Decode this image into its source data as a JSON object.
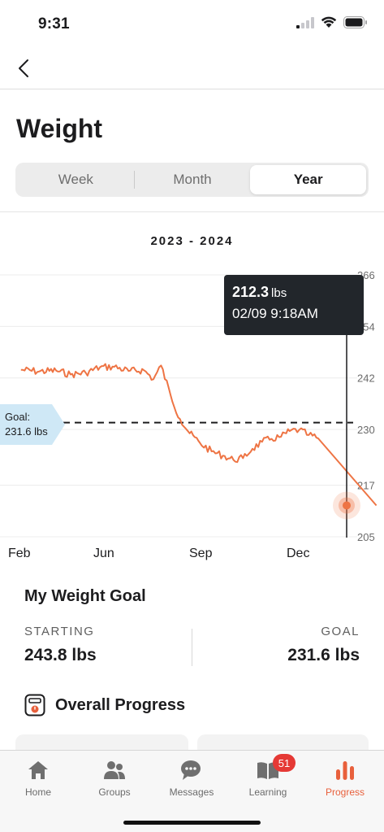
{
  "status_bar": {
    "time": "9:31"
  },
  "page": {
    "title": "Weight"
  },
  "segments": [
    {
      "label": "Week",
      "active": false
    },
    {
      "label": "Month",
      "active": false
    },
    {
      "label": "Year",
      "active": true
    }
  ],
  "chart_data": {
    "type": "line",
    "title": "2023 - 2024",
    "x_tick_labels": [
      "Feb",
      "Jun",
      "Sep",
      "Dec"
    ],
    "y_tick_labels": [
      "266",
      "254",
      "242",
      "230",
      "217",
      "205"
    ],
    "ylim": [
      205,
      266
    ],
    "series": [
      {
        "color": "#ee7444",
        "x": [
          "2023-02-01",
          "2023-02-20",
          "2023-03-10",
          "2023-03-25",
          "2023-04-10",
          "2023-04-25",
          "2023-05-10",
          "2023-05-25",
          "2023-06-10",
          "2023-06-20",
          "2023-06-28",
          "2023-07-08",
          "2023-07-18",
          "2023-07-28",
          "2023-08-08",
          "2023-08-20",
          "2023-09-01",
          "2023-09-12",
          "2023-09-22",
          "2023-10-02",
          "2023-10-12",
          "2023-10-22",
          "2023-11-01",
          "2023-11-10",
          "2023-11-20",
          "2023-11-30",
          "2023-12-10",
          "2024-02-09"
        ],
        "values": [
          243.9,
          243.5,
          243.7,
          242.8,
          243.2,
          244.5,
          244.6,
          243.6,
          243.8,
          241.7,
          244.9,
          238.0,
          232.4,
          229.1,
          226.8,
          224.9,
          223.9,
          222.9,
          223.3,
          225.5,
          227.1,
          227.8,
          228.3,
          229.6,
          229.9,
          228.7,
          227.9,
          212.3
        ]
      }
    ],
    "goal_line": 231.6,
    "goal_label": "Goal:",
    "goal_value": "231.6 lbs",
    "selected_point": {
      "value": "212.3",
      "unit": "lbs",
      "datetime": "02/09 9:18AM"
    }
  },
  "goal_section": {
    "title": "My Weight Goal",
    "starting_label": "STARTING",
    "starting_value": "243.8 lbs",
    "goal_label": "GOAL",
    "goal_value": "231.6 lbs"
  },
  "progress": {
    "title": "Overall Progress"
  },
  "tabs": [
    {
      "label": "Home",
      "icon": "home-icon",
      "active": false
    },
    {
      "label": "Groups",
      "icon": "groups-icon",
      "active": false
    },
    {
      "label": "Messages",
      "icon": "messages-icon",
      "active": false
    },
    {
      "label": "Learning",
      "icon": "learning-icon",
      "active": false,
      "badge": "51"
    },
    {
      "label": "Progress",
      "icon": "progress-icon",
      "active": true
    }
  ],
  "colors": {
    "accent": "#e8603c",
    "line": "#ee7444",
    "goal_tag": "#cfe8f6",
    "tooltip": "#22262b"
  }
}
